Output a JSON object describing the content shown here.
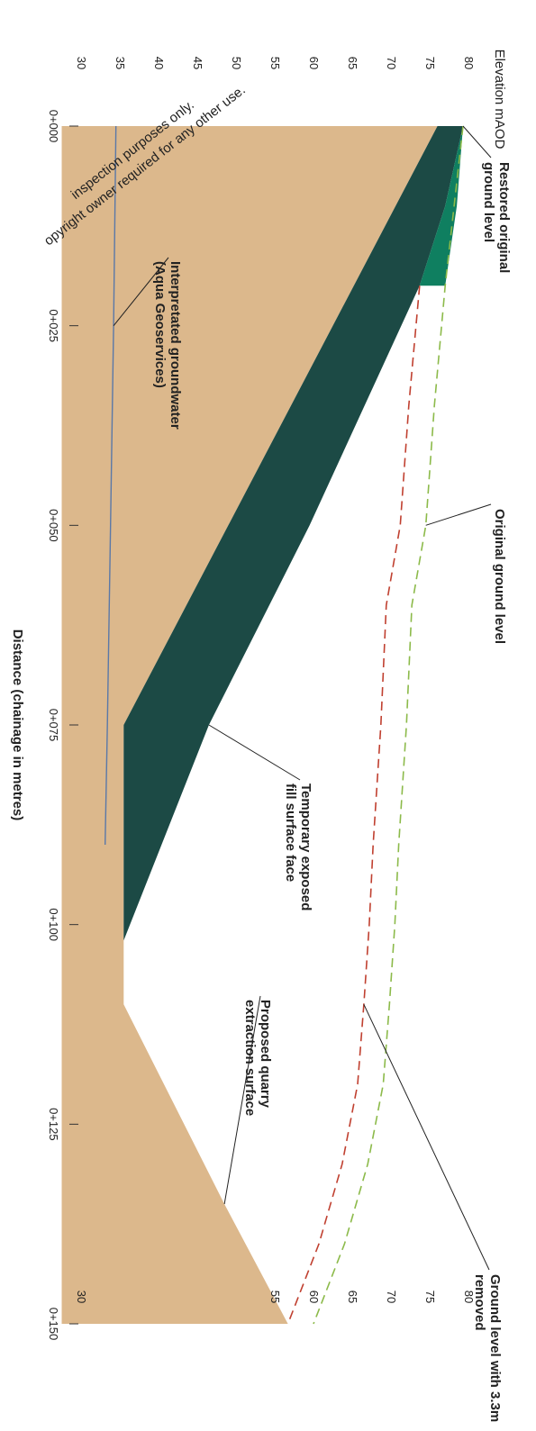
{
  "chart_data": {
    "type": "area",
    "orientation": "rotated-90-clockwise",
    "title": "",
    "xlabel": "Distance (chainage in metres)",
    "ylabel": "Elevation mAOD",
    "xlim": [
      0,
      150
    ],
    "ylim": [
      30,
      80
    ],
    "x_ticks": [
      "0+000",
      "0+025",
      "0+050",
      "0+075",
      "0+100",
      "0+125",
      "0+150"
    ],
    "y_ticks": [
      "30",
      "35",
      "40",
      "45",
      "50",
      "55",
      "60",
      "65",
      "70",
      "75",
      "80"
    ],
    "inner_y_ticks": [
      "30",
      "55",
      "60",
      "65",
      "70",
      "75",
      "80"
    ],
    "colors": {
      "ground": "#dcb88c",
      "fill": "#1c4a45",
      "restored": "#0f7f60",
      "original_line": "#8cba4a",
      "removed_line": "#c04030",
      "groundwater_line": "#5a78a8"
    },
    "series": [
      {
        "name": "Restored original ground level",
        "x": [
          0,
          10,
          20
        ],
        "y": [
          79.3,
          78.5,
          77.0
        ]
      },
      {
        "name": "Original ground level",
        "x": [
          0,
          20,
          35,
          50,
          60,
          75,
          90,
          100,
          110,
          120,
          130,
          140,
          150
        ],
        "y": [
          79.3,
          77.0,
          75.6,
          74.5,
          72.7,
          72.0,
          71.0,
          70.5,
          69.8,
          69.0,
          67.0,
          64.0,
          60.0
        ]
      },
      {
        "name": "Ground level with 3.3m removed",
        "x": [
          20,
          35,
          50,
          60,
          75,
          90,
          100,
          110,
          120,
          130,
          140,
          150
        ],
        "y": [
          73.7,
          72.3,
          71.2,
          69.4,
          68.7,
          67.7,
          67.2,
          66.5,
          65.7,
          63.7,
          60.7,
          56.7
        ]
      },
      {
        "name": "Temporary exposed fill surface face",
        "x": [
          0,
          10,
          20,
          50,
          75,
          102
        ],
        "y": [
          79.3,
          77.0,
          73.7,
          59.5,
          46.5,
          35.5
        ]
      },
      {
        "name": "Proposed quarry extraction surface",
        "x": [
          0,
          75,
          77,
          110,
          135,
          150
        ],
        "y": [
          76.0,
          35.5,
          35.5,
          35.5,
          48.5,
          56.7
        ]
      },
      {
        "name": "Interpretated groundwater (Aqua Geoservices)",
        "x": [
          0,
          25,
          50,
          75,
          90
        ],
        "y": [
          34.5,
          34.2,
          33.8,
          33.4,
          33.1
        ]
      }
    ],
    "annotations": [
      {
        "text": [
          "Restored original",
          "ground level"
        ],
        "points_to": [
          0,
          79.3
        ]
      },
      {
        "text": [
          "Original ground level"
        ],
        "points_to": [
          50,
          74.5
        ]
      },
      {
        "text": [
          "Temporary exposed",
          "fill surface face"
        ],
        "points_to": [
          75,
          46.5
        ]
      },
      {
        "text": [
          "Ground level with 3.3m",
          "removed"
        ],
        "points_to": [
          110,
          66.5
        ]
      },
      {
        "text": [
          "Proposed quarry",
          "extraction surface"
        ],
        "points_to": [
          135,
          48.5
        ]
      },
      {
        "text": [
          "Interpretated groundwater",
          "(Aqua Geoservices)"
        ],
        "points_to": [
          25,
          34.2
        ]
      }
    ],
    "watermark": [
      "inspection purposes only.",
      "opyright owner required for any other use."
    ]
  }
}
